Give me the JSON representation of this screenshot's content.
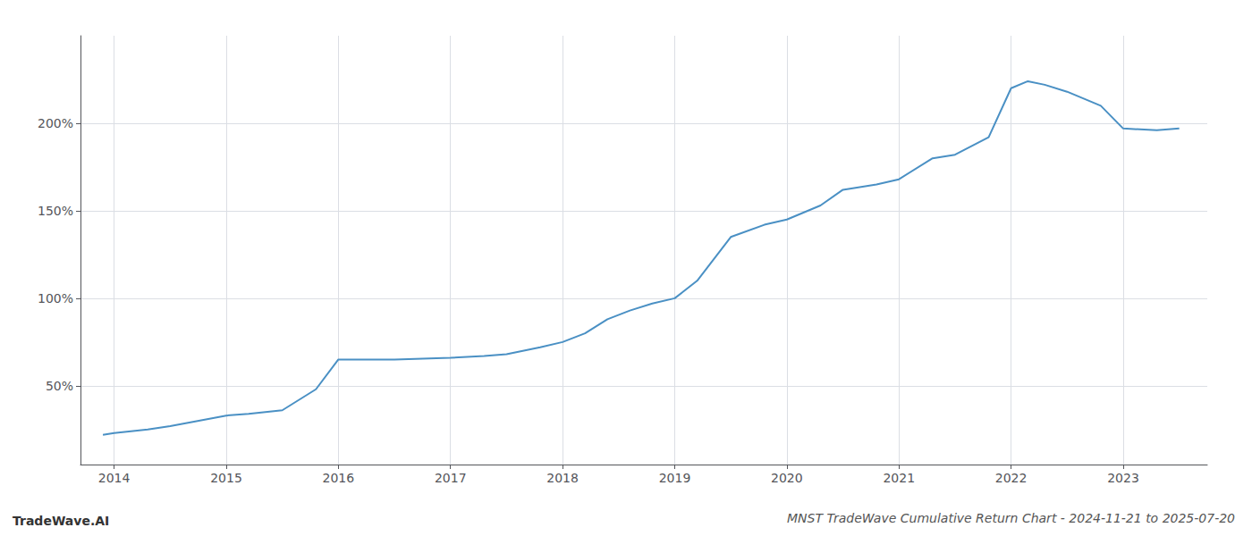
{
  "chart_data": {
    "type": "line",
    "title": "MNST TradeWave Cumulative Return Chart - 2024-11-21 to 2025-07-20",
    "annotations": [
      "TradeWave.AI"
    ],
    "x": [
      2013.9,
      2014.0,
      2014.3,
      2014.5,
      2015.0,
      2015.2,
      2015.5,
      2015.8,
      2016.0,
      2016.3,
      2016.5,
      2017.0,
      2017.3,
      2017.5,
      2017.8,
      2018.0,
      2018.2,
      2018.4,
      2018.6,
      2018.8,
      2019.0,
      2019.2,
      2019.5,
      2019.8,
      2020.0,
      2020.3,
      2020.5,
      2020.8,
      2021.0,
      2021.3,
      2021.5,
      2021.8,
      2022.0,
      2022.15,
      2022.3,
      2022.5,
      2022.8,
      2023.0,
      2023.3,
      2023.5
    ],
    "values": [
      22,
      23,
      25,
      27,
      33,
      34,
      36,
      48,
      65,
      65,
      65,
      66,
      67,
      68,
      72,
      75,
      80,
      88,
      93,
      97,
      100,
      110,
      135,
      142,
      145,
      153,
      162,
      165,
      168,
      180,
      182,
      192,
      220,
      224,
      222,
      218,
      210,
      197,
      196,
      197
    ],
    "color": "#4a90c4",
    "xlim": [
      2013.7,
      2023.75
    ],
    "xticks": [
      2014,
      2015,
      2016,
      2017,
      2018,
      2019,
      2020,
      2021,
      2022,
      2023
    ],
    "ylim": [
      5,
      250
    ],
    "yticks": [
      {
        "value": 50,
        "label": "50%"
      },
      {
        "value": 100,
        "label": "100%"
      },
      {
        "value": 150,
        "label": "150%"
      },
      {
        "value": 200,
        "label": "200%"
      }
    ],
    "grid": true
  }
}
